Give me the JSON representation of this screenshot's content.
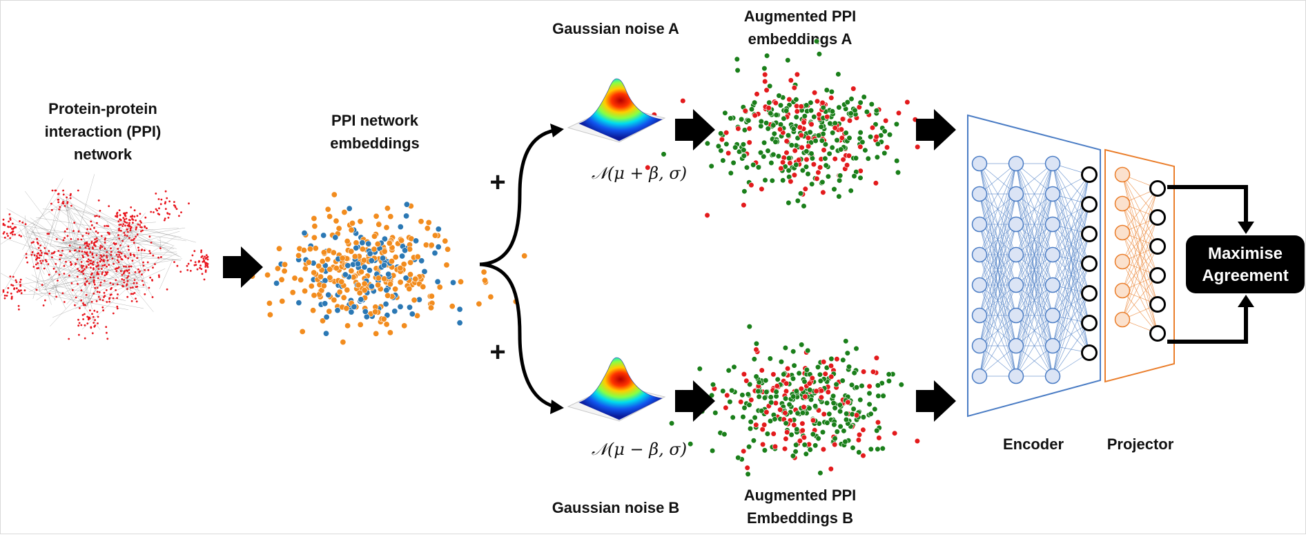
{
  "labels": {
    "ppi_network": [
      "Protein-protein",
      "interaction (PPI)",
      "network"
    ],
    "ppi_embeddings": [
      "PPI network",
      "embeddings"
    ],
    "noise_a": "Gaussian noise A",
    "noise_b": "Gaussian noise B",
    "aug_a": [
      "Augmented PPI",
      "embeddings A"
    ],
    "aug_b": [
      "Augmented PPI",
      "Embeddings B"
    ],
    "formula_a": "𝒩(μ + β, σ)",
    "formula_b": "𝒩(μ − β, σ)",
    "plus": "+",
    "encoder": "Encoder",
    "projector": "Projector",
    "maximise": [
      "Maximise",
      "Agreement"
    ]
  },
  "colors": {
    "network_node": "#e8141c",
    "embed_orange": "#f28c1e",
    "embed_blue": "#2b78b4",
    "aug_red": "#e31a1c",
    "aug_green": "#1a7f1a",
    "encoder": "#4a7cc4",
    "encoder_node": "#dbe4f5",
    "projector": "#ea7d2a",
    "projector_node": "#fbe1cd",
    "output_box": "#000000"
  },
  "encoder_layers": [
    8,
    8,
    8,
    7
  ],
  "projector_layers": [
    6,
    6
  ]
}
